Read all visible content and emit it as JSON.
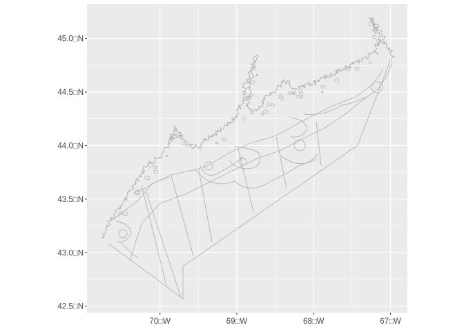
{
  "map": {
    "panel_color": "#ebebeb",
    "gridline_color": "#ffffff",
    "feature_color": "#b3b3b3",
    "background_color": "#ffffff",
    "y_ticks": [
      {
        "value": 42.5,
        "label": "42.5□N"
      },
      {
        "value": 43.0,
        "label": "43.0□N"
      },
      {
        "value": 43.5,
        "label": "43.5□N"
      },
      {
        "value": 44.0,
        "label": "44.0□N"
      },
      {
        "value": 44.5,
        "label": "44.5□N"
      },
      {
        "value": 45.0,
        "label": "45.0□N"
      }
    ],
    "x_ticks": [
      {
        "value": -70,
        "label": "70□W"
      },
      {
        "value": -69,
        "label": "69□W"
      },
      {
        "value": -68,
        "label": "68□W"
      },
      {
        "value": -67,
        "label": "67□W"
      }
    ],
    "xlim": [
      -70.95,
      -66.78
    ],
    "ylim": [
      42.44,
      45.32
    ]
  }
}
